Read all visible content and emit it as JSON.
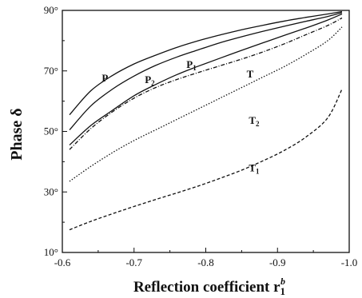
{
  "chart_data": {
    "type": "line",
    "xlabel": "Reflection coefficient r",
    "xlabel_sub": "1",
    "xlabel_sup": "b",
    "ylabel": "Phase δ",
    "xlim": [
      -0.6,
      -1.0
    ],
    "ylim": [
      10,
      90
    ],
    "x_ticks": [
      {
        "value": -0.6,
        "label": "-0.6"
      },
      {
        "value": -0.7,
        "label": "-0.7"
      },
      {
        "value": -0.8,
        "label": "-0.8"
      },
      {
        "value": -0.9,
        "label": "-0.9"
      },
      {
        "value": -1.0,
        "label": "-1.0"
      }
    ],
    "y_ticks": [
      {
        "value": 10,
        "label": "10°"
      },
      {
        "value": 30,
        "label": "30°"
      },
      {
        "value": 50,
        "label": "50°"
      },
      {
        "value": 70,
        "label": "70°"
      },
      {
        "value": 90,
        "label": "90°"
      }
    ],
    "grid": false,
    "series": [
      {
        "name": "P",
        "style": "solid",
        "label_at": [
          -0.655,
          66.5
        ],
        "x": [
          -0.61,
          -0.64,
          -0.67,
          -0.7,
          -0.73,
          -0.76,
          -0.79,
          -0.82,
          -0.85,
          -0.88,
          -0.91,
          -0.94,
          -0.97,
          -0.99
        ],
        "y": [
          55.5,
          63.5,
          68.5,
          72.3,
          75.2,
          77.8,
          80.0,
          81.9,
          83.6,
          85.1,
          86.5,
          87.7,
          88.8,
          89.6
        ]
      },
      {
        "name": "P2",
        "style": "solid",
        "label_at": [
          -0.715,
          66.0
        ],
        "x": [
          -0.61,
          -0.64,
          -0.67,
          -0.7,
          -0.73,
          -0.76,
          -0.79,
          -0.82,
          -0.85,
          -0.88,
          -0.91,
          -0.94,
          -0.97,
          -0.99
        ],
        "y": [
          50.5,
          58.5,
          64.0,
          68.3,
          71.8,
          74.6,
          77.0,
          79.3,
          81.3,
          83.1,
          84.8,
          86.4,
          88.0,
          89.3
        ]
      },
      {
        "name": "P1",
        "style": "solid",
        "label_at": [
          -0.773,
          71.0
        ],
        "x": [
          -0.61,
          -0.64,
          -0.67,
          -0.7,
          -0.73,
          -0.76,
          -0.79,
          -0.82,
          -0.85,
          -0.88,
          -0.91,
          -0.94,
          -0.97,
          -0.99
        ],
        "y": [
          45.5,
          52.0,
          57.0,
          61.8,
          65.5,
          68.8,
          71.6,
          74.2,
          76.8,
          79.3,
          81.8,
          84.2,
          86.8,
          88.8
        ]
      },
      {
        "name": "T",
        "style": "dashdot",
        "label_at": [
          -0.857,
          67.8
        ],
        "x": [
          -0.61,
          -0.64,
          -0.67,
          -0.7,
          -0.73,
          -0.76,
          -0.79,
          -0.82,
          -0.85,
          -0.88,
          -0.91,
          -0.94,
          -0.97,
          -0.99
        ],
        "y": [
          44.0,
          51.0,
          56.5,
          61.0,
          64.5,
          67.2,
          69.5,
          71.7,
          73.9,
          76.3,
          79.0,
          82.0,
          85.0,
          87.5
        ]
      },
      {
        "name": "T2",
        "style": "dotted",
        "label_at": [
          -0.86,
          52.5
        ],
        "x": [
          -0.61,
          -0.64,
          -0.67,
          -0.7,
          -0.73,
          -0.76,
          -0.79,
          -0.82,
          -0.85,
          -0.88,
          -0.91,
          -0.94,
          -0.97,
          -0.99
        ],
        "y": [
          33.5,
          38.5,
          43.0,
          47.0,
          50.5,
          54.0,
          57.5,
          61.0,
          64.5,
          68.0,
          71.5,
          75.5,
          80.0,
          84.5
        ]
      },
      {
        "name": "T1",
        "style": "dashed",
        "label_at": [
          -0.86,
          36.8
        ],
        "x": [
          -0.61,
          -0.64,
          -0.67,
          -0.7,
          -0.73,
          -0.76,
          -0.79,
          -0.82,
          -0.85,
          -0.88,
          -0.91,
          -0.94,
          -0.97,
          -0.99
        ],
        "y": [
          17.5,
          20.3,
          22.8,
          25.2,
          27.5,
          29.7,
          32.0,
          34.5,
          37.2,
          40.3,
          43.8,
          48.2,
          54.5,
          64.0
        ]
      }
    ]
  }
}
